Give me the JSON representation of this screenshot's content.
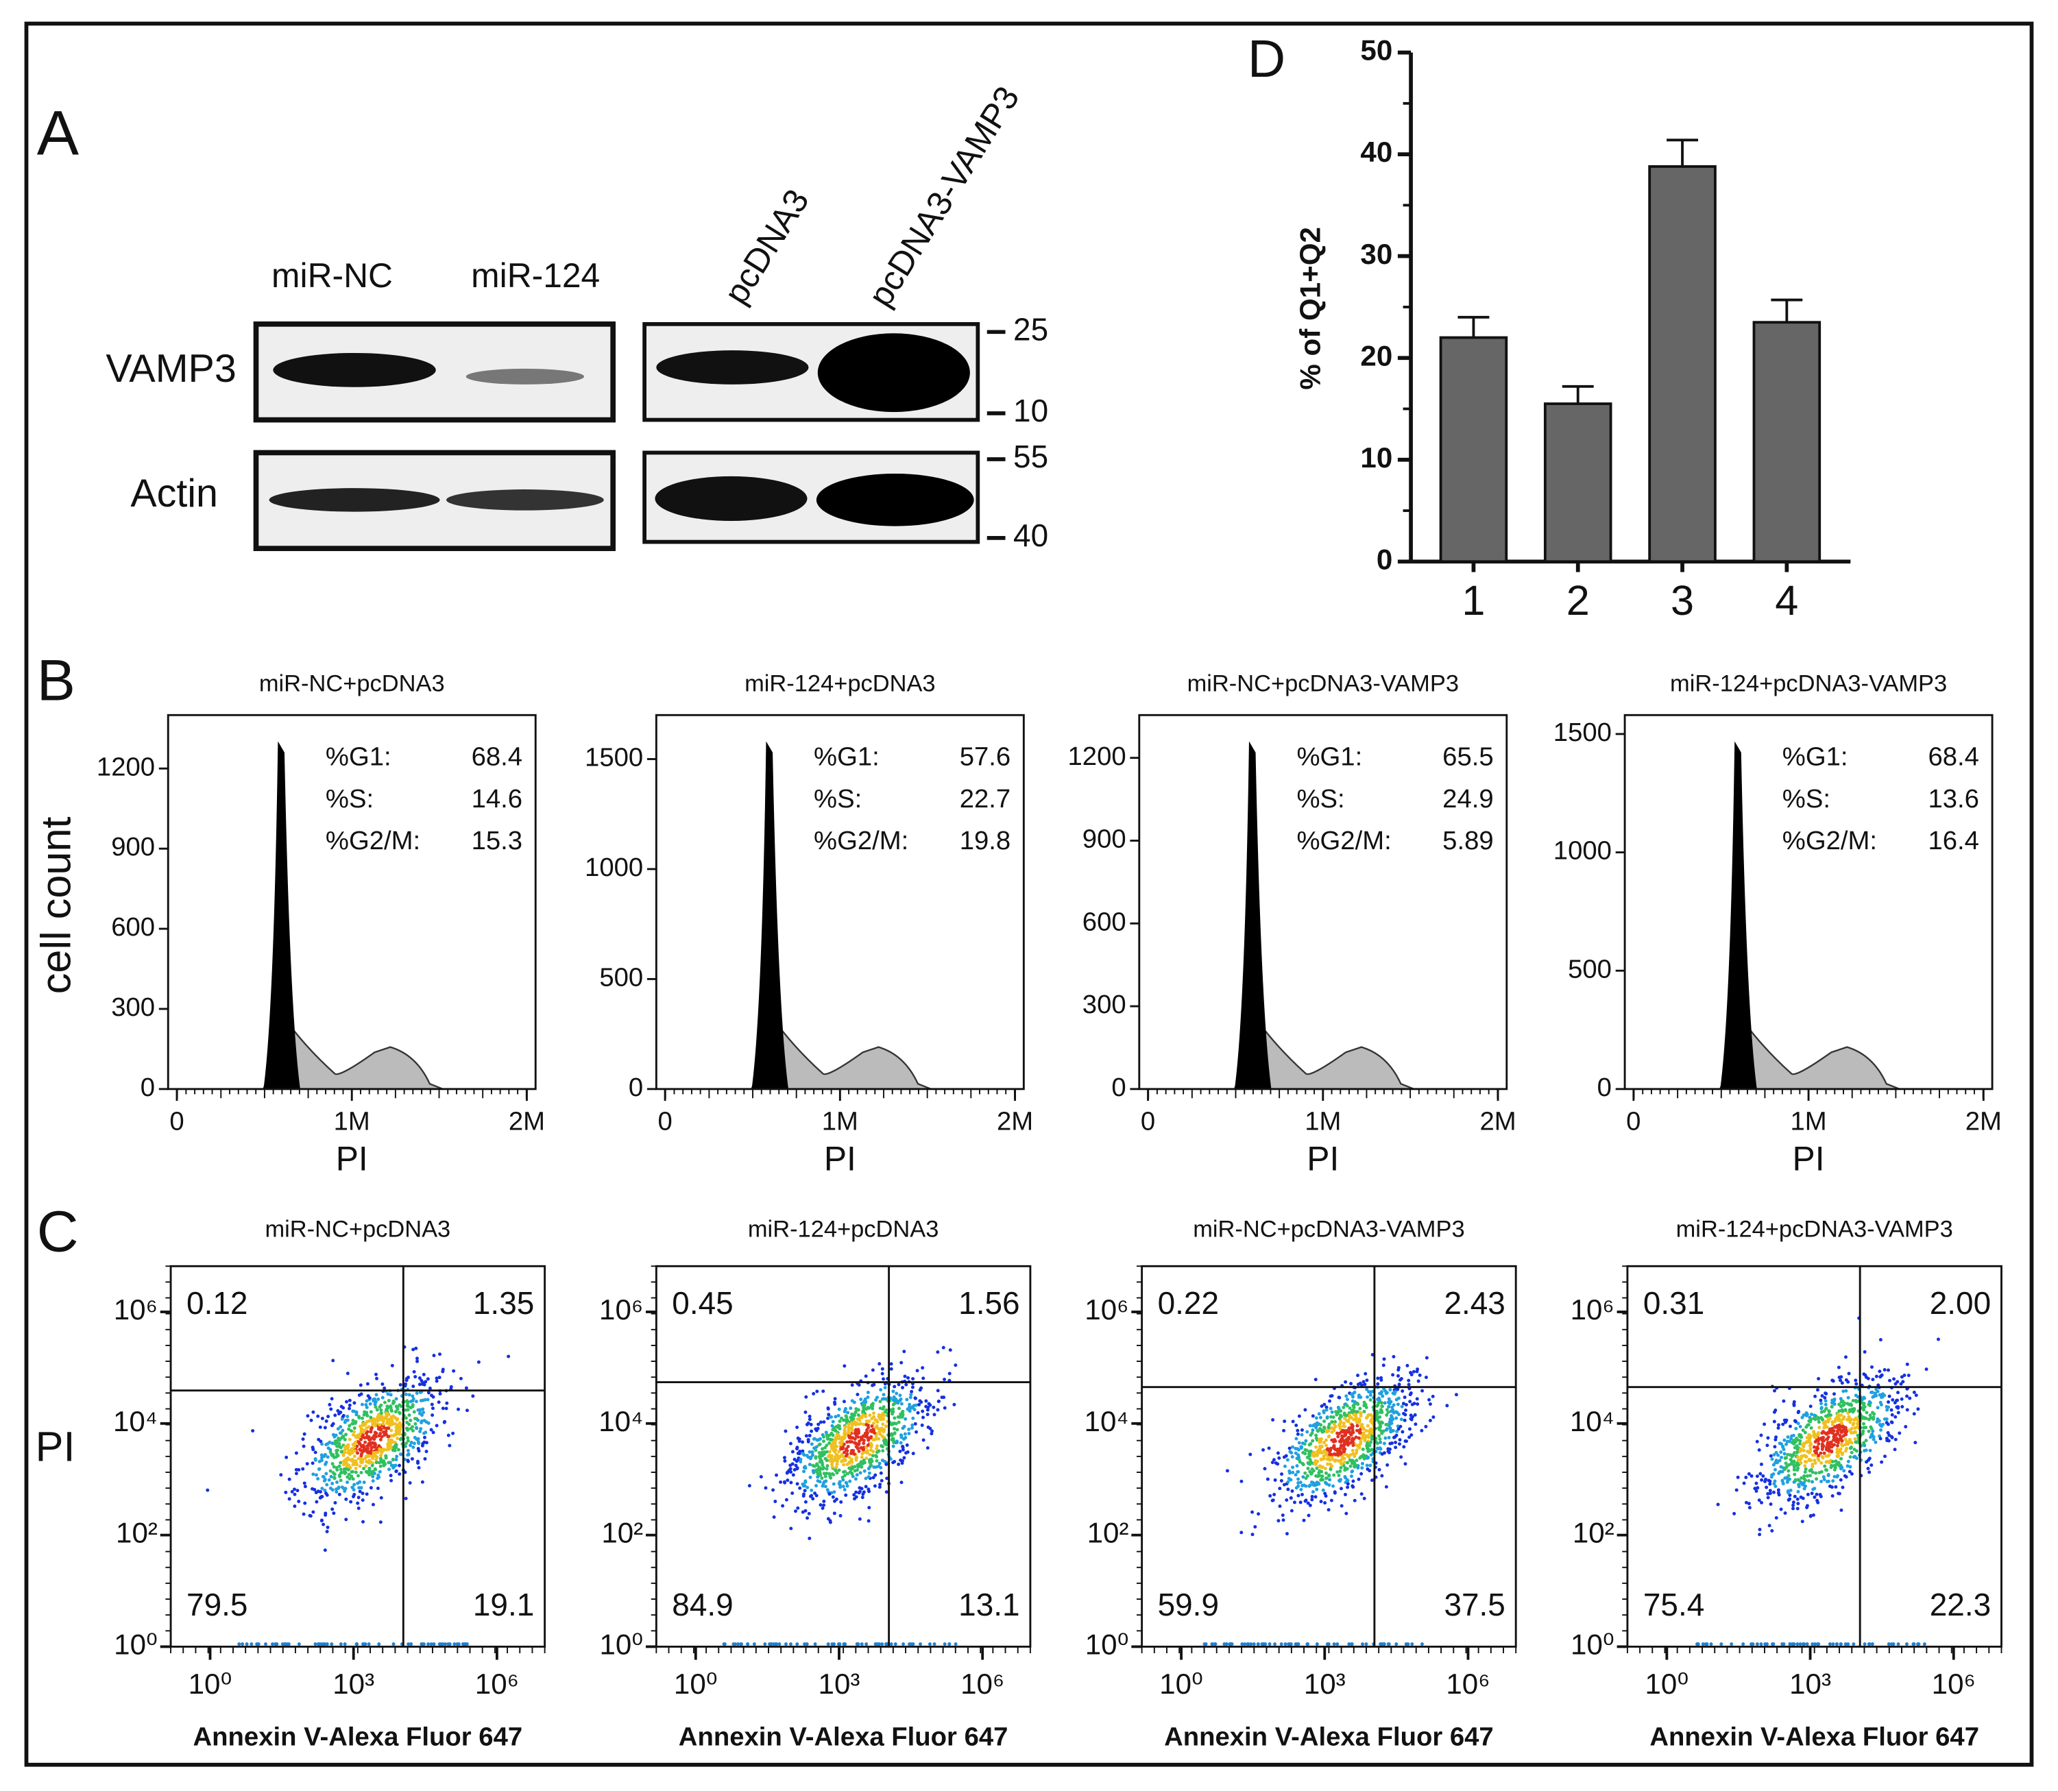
{
  "figure": {
    "panel_a": {
      "label": "A",
      "lanes": [
        "miR-NC",
        "miR-124",
        "pcDNA3",
        "pcDNA3-VAMP3"
      ],
      "rows": [
        "VAMP3",
        "Actin"
      ],
      "markers": [
        25,
        10,
        55,
        40
      ]
    },
    "panel_b": {
      "label": "B",
      "y_label": "cell count",
      "x_label": "PI",
      "plots": [
        {
          "title": "miR-NC+pcDNA3",
          "ylim": [
            0,
            1400
          ],
          "yticks": [
            0,
            300,
            600,
            900,
            1200
          ],
          "xlim": [
            -50000,
            2050000
          ],
          "xticks": [
            0,
            {
              "value": 1000000,
              "label": "1M"
            },
            {
              "value": 2000000,
              "label": "2M"
            }
          ],
          "stats": [
            {
              "label": "%G1:",
              "value": 68.4
            },
            {
              "label": "%S:",
              "value": 14.6
            },
            {
              "label": "%G2/M:",
              "value": 15.3
            }
          ]
        },
        {
          "title": "miR-124+pcDNA3",
          "ylim": [
            0,
            1700
          ],
          "yticks": [
            0,
            500,
            1000,
            1500
          ],
          "xlim": [
            -50000,
            2050000
          ],
          "xticks": [
            0,
            {
              "value": 1000000,
              "label": "1M"
            },
            {
              "value": 2000000,
              "label": "2M"
            }
          ],
          "stats": [
            {
              "label": "%G1:",
              "value": 57.6
            },
            {
              "label": "%S:",
              "value": 22.7
            },
            {
              "label": "%G2/M:",
              "value": 19.8
            }
          ]
        },
        {
          "title": "miR-NC+pcDNA3-VAMP3",
          "ylim": [
            0,
            1355
          ],
          "yticks": [
            0,
            300,
            600,
            900,
            1200
          ],
          "xlim": [
            -50000,
            2050000
          ],
          "xticks": [
            0,
            {
              "value": 1000000,
              "label": "1M"
            },
            {
              "value": 2000000,
              "label": "2M"
            }
          ],
          "stats": [
            {
              "label": "%G1:",
              "value": 65.5
            },
            {
              "label": "%S:",
              "value": 24.9
            },
            {
              "label": "%G2/M:",
              "value": 5.89
            }
          ]
        },
        {
          "title": "miR-124+pcDNA3-VAMP3",
          "ylim": [
            0,
            1580
          ],
          "yticks": [
            0,
            500,
            1000,
            1500
          ],
          "xlim": [
            -50000,
            2050000
          ],
          "xticks": [
            0,
            {
              "value": 1000000,
              "label": "1M"
            },
            {
              "value": 2000000,
              "label": "2M"
            }
          ],
          "stats": [
            {
              "label": "%G1:",
              "value": 68.4
            },
            {
              "label": "%S:",
              "value": 13.6
            },
            {
              "label": "%G2/M:",
              "value": 16.4
            }
          ]
        }
      ]
    },
    "panel_c": {
      "label": "C",
      "y_label": "PI",
      "x_label": "Annexin V-Alexa Fluor 647",
      "log_scale": true,
      "xlim": [
        0.15,
        10000000
      ],
      "ylim": [
        1,
        6600000
      ],
      "xticks": [
        {
          "value": 1,
          "label": "10⁰"
        },
        {
          "value": 1000,
          "label": "10³"
        },
        {
          "value": 1000000,
          "label": "10⁶"
        }
      ],
      "yticks": [
        {
          "value": 1,
          "label": "10⁰"
        },
        {
          "value": 100,
          "label": "10²"
        },
        {
          "value": 10000,
          "label": "10⁴"
        },
        {
          "value": 1000000,
          "label": "10⁶"
        }
      ],
      "plots": [
        {
          "title": "miR-NC+pcDNA3",
          "quadrants": [
            0.12,
            1.35,
            79.5,
            19.1
          ],
          "gate": [
            11000,
            39000
          ]
        },
        {
          "title": "miR-124+pcDNA3",
          "quadrants": [
            0.45,
            1.56,
            84.9,
            13.1
          ],
          "gate": [
            11000,
            55000
          ]
        },
        {
          "title": "miR-NC+pcDNA3-VAMP3",
          "quadrants": [
            0.22,
            2.43,
            59.9,
            37.5
          ],
          "gate": [
            11000,
            45000
          ]
        },
        {
          "title": "miR-124+pcDNA3-VAMP3",
          "quadrants": [
            0.31,
            {
              "value": 2,
              "label": "2.00"
            },
            75.4,
            22.3
          ],
          "gate": [
            11000,
            45000
          ]
        }
      ]
    }
  },
  "chart_data": {
    "type": "bar",
    "label": "D",
    "y_label": "% of Q1+Q2",
    "categories": [
      "1",
      "2",
      "3",
      "4"
    ],
    "values": [
      22,
      15.5,
      38.8,
      23.5
    ],
    "errors": [
      2,
      1.7,
      2.6,
      2.2
    ],
    "color": "#666666",
    "ylim": [
      0,
      50
    ],
    "yticks": [
      0,
      10,
      20,
      30,
      40,
      50
    ]
  }
}
